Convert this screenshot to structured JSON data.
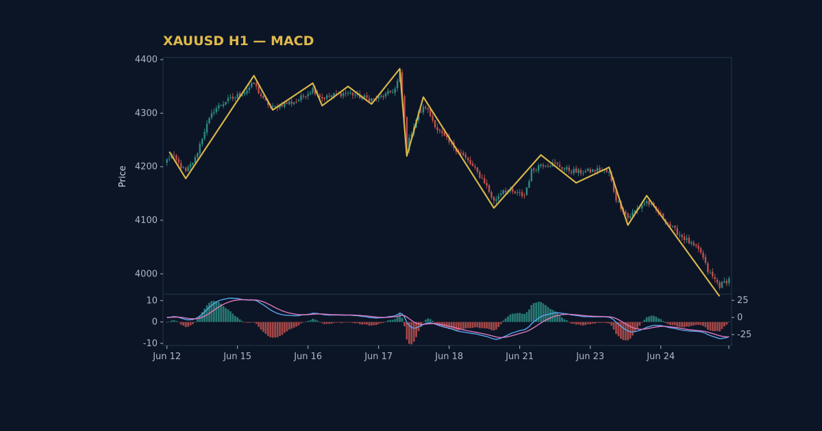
{
  "colors": {
    "background": "#0b1526",
    "title": "#e0b94a",
    "frame": "#26324a",
    "tick_text": "#aeb7c6",
    "up": "#2e8b82",
    "down": "#c0504d",
    "zigzag": "#d8b54a",
    "macd_line": "#5aa9f0",
    "signal_line": "#e07ac0"
  },
  "chart_data": {
    "type": "candlestick",
    "title": "XAUUSD H1 — MACD",
    "price_panel": {
      "ylabel": "Price",
      "ylim": [
        3962,
        4404
      ],
      "yticks": [
        4000,
        4100,
        4200,
        4300,
        4400
      ],
      "grid": false,
      "zigzag": [
        {
          "i": 1,
          "y": 4228
        },
        {
          "i": 8,
          "y": 4178
        },
        {
          "i": 37,
          "y": 4370
        },
        {
          "i": 45,
          "y": 4306
        },
        {
          "i": 62,
          "y": 4356
        },
        {
          "i": 66,
          "y": 4314
        },
        {
          "i": 77,
          "y": 4350
        },
        {
          "i": 87,
          "y": 4317
        },
        {
          "i": 99,
          "y": 4383
        },
        {
          "i": 102,
          "y": 4220
        },
        {
          "i": 109,
          "y": 4330
        },
        {
          "i": 139,
          "y": 4123
        },
        {
          "i": 159,
          "y": 4222
        },
        {
          "i": 174,
          "y": 4170
        },
        {
          "i": 188,
          "y": 4199
        },
        {
          "i": 196,
          "y": 4091
        },
        {
          "i": 204,
          "y": 4146
        },
        {
          "i": 235,
          "y": 3958
        }
      ]
    },
    "macd_panel": {
      "left_ylim": [
        -11,
        13
      ],
      "left_yticks": [
        10,
        0,
        -10
      ],
      "right_ylim": [
        -41,
        34
      ],
      "right_yticks": [
        25,
        0,
        -25
      ],
      "series": [
        "MACD",
        "Signal",
        "Histogram"
      ]
    },
    "x_ticks": [
      {
        "i": 0,
        "label": "Jun 12"
      },
      {
        "i": 30,
        "label": "Jun 15"
      },
      {
        "i": 60,
        "label": "Jun 16"
      },
      {
        "i": 90,
        "label": "Jun 17"
      },
      {
        "i": 120,
        "label": "Jun 18"
      },
      {
        "i": 150,
        "label": "Jun 21"
      },
      {
        "i": 180,
        "label": "Jun 23"
      },
      {
        "i": 210,
        "label": "Jun 24"
      }
    ],
    "n_bars": 240,
    "price_anchors": [
      {
        "i": 0,
        "y": 4212
      },
      {
        "i": 2,
        "y": 4222
      },
      {
        "i": 8,
        "y": 4190
      },
      {
        "i": 12,
        "y": 4215
      },
      {
        "i": 16,
        "y": 4268
      },
      {
        "i": 20,
        "y": 4306
      },
      {
        "i": 25,
        "y": 4322
      },
      {
        "i": 29,
        "y": 4330
      },
      {
        "i": 33,
        "y": 4340
      },
      {
        "i": 37,
        "y": 4355
      },
      {
        "i": 41,
        "y": 4325
      },
      {
        "i": 45,
        "y": 4310
      },
      {
        "i": 50,
        "y": 4318
      },
      {
        "i": 55,
        "y": 4322
      },
      {
        "i": 62,
        "y": 4345
      },
      {
        "i": 66,
        "y": 4328
      },
      {
        "i": 72,
        "y": 4335
      },
      {
        "i": 77,
        "y": 4338
      },
      {
        "i": 83,
        "y": 4330
      },
      {
        "i": 88,
        "y": 4325
      },
      {
        "i": 93,
        "y": 4334
      },
      {
        "i": 97,
        "y": 4345
      },
      {
        "i": 99,
        "y": 4372
      },
      {
        "i": 101,
        "y": 4290
      },
      {
        "i": 102,
        "y": 4235
      },
      {
        "i": 104,
        "y": 4265
      },
      {
        "i": 107,
        "y": 4300
      },
      {
        "i": 110,
        "y": 4312
      },
      {
        "i": 115,
        "y": 4270
      },
      {
        "i": 120,
        "y": 4245
      },
      {
        "i": 125,
        "y": 4225
      },
      {
        "i": 130,
        "y": 4200
      },
      {
        "i": 135,
        "y": 4172
      },
      {
        "i": 139,
        "y": 4135
      },
      {
        "i": 143,
        "y": 4158
      },
      {
        "i": 148,
        "y": 4150
      },
      {
        "i": 152,
        "y": 4146
      },
      {
        "i": 155,
        "y": 4192
      },
      {
        "i": 159,
        "y": 4205
      },
      {
        "i": 165,
        "y": 4205
      },
      {
        "i": 170,
        "y": 4195
      },
      {
        "i": 175,
        "y": 4190
      },
      {
        "i": 180,
        "y": 4192
      },
      {
        "i": 184,
        "y": 4195
      },
      {
        "i": 188,
        "y": 4188
      },
      {
        "i": 191,
        "y": 4140
      },
      {
        "i": 196,
        "y": 4105
      },
      {
        "i": 201,
        "y": 4125
      },
      {
        "i": 204,
        "y": 4135
      },
      {
        "i": 210,
        "y": 4110
      },
      {
        "i": 215,
        "y": 4085
      },
      {
        "i": 219,
        "y": 4070
      },
      {
        "i": 223,
        "y": 4055
      },
      {
        "i": 227,
        "y": 4040
      },
      {
        "i": 230,
        "y": 4005
      },
      {
        "i": 235,
        "y": 3978
      },
      {
        "i": 239,
        "y": 3990
      }
    ]
  }
}
